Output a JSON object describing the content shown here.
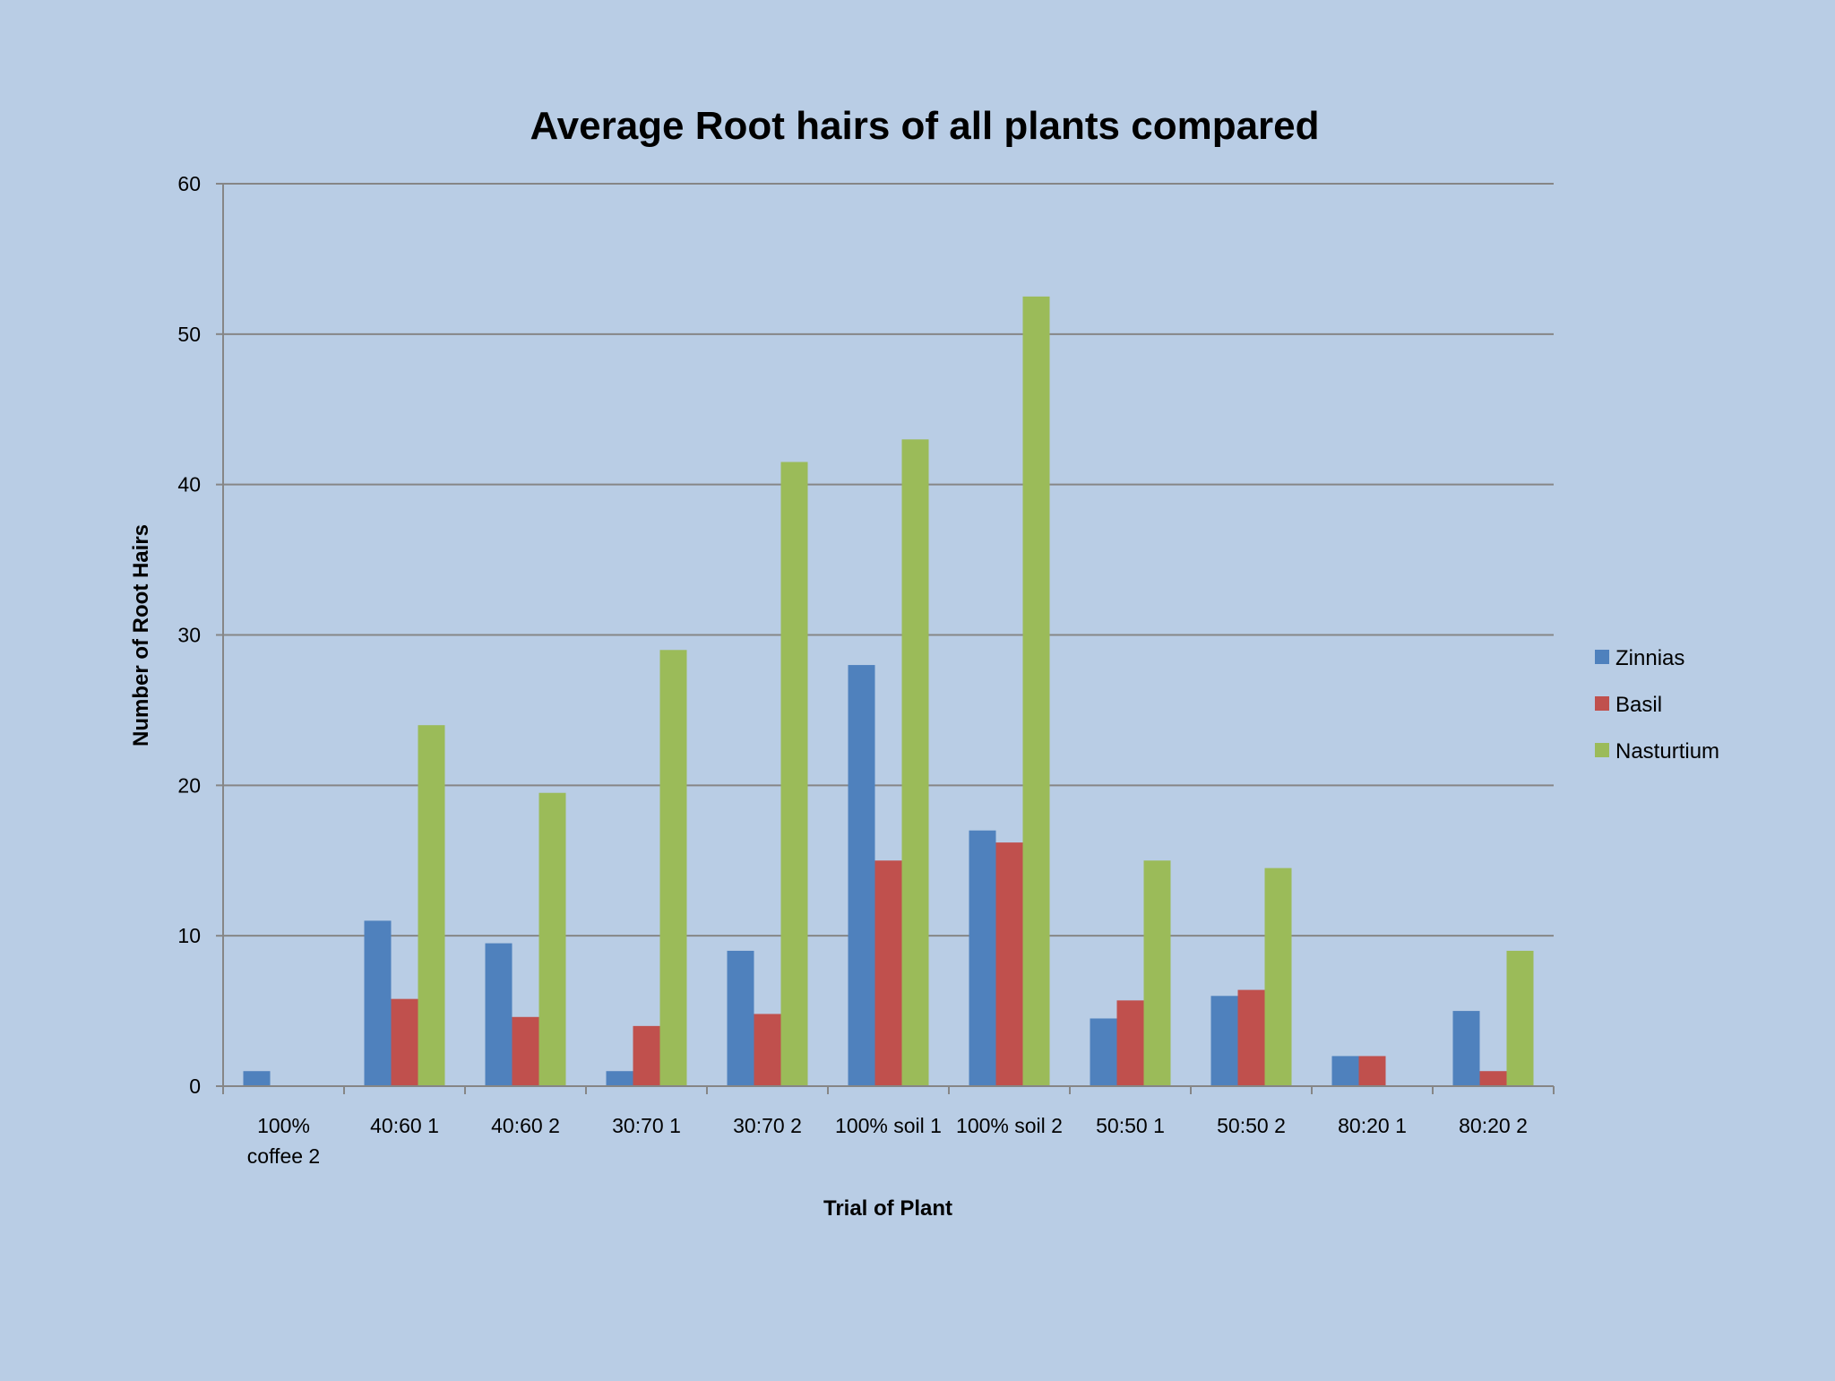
{
  "chart_data": {
    "type": "bar",
    "title": "Average Root hairs of all plants compared",
    "xlabel": "Trial of Plant",
    "ylabel": "Number of Root Hairs",
    "ylim": [
      0,
      60
    ],
    "yticks": [
      0,
      10,
      20,
      30,
      40,
      50,
      60
    ],
    "grid": true,
    "legend_position": "right",
    "categories": [
      "100% coffee 2",
      "40:60 1",
      "40:60 2",
      "30:70 1",
      "30:70 2",
      "100% soil 1",
      "100% soil 2",
      "50:50 1",
      "50:50 2",
      "80:20 1",
      "80:20 2"
    ],
    "category_lines": [
      [
        "100%",
        "coffee 2"
      ],
      [
        "40:60 1"
      ],
      [
        "40:60 2"
      ],
      [
        "30:70 1"
      ],
      [
        "30:70 2"
      ],
      [
        "100% soil 1"
      ],
      [
        "100% soil 2"
      ],
      [
        "50:50 1"
      ],
      [
        "50:50 2"
      ],
      [
        "80:20 1"
      ],
      [
        "80:20 2"
      ]
    ],
    "series": [
      {
        "name": "Zinnias",
        "color": "#4f81bd",
        "values": [
          1,
          11,
          9.5,
          1,
          9,
          28,
          17,
          4.5,
          6,
          2,
          5
        ]
      },
      {
        "name": "Basil",
        "color": "#c0504d",
        "values": [
          0,
          5.8,
          4.6,
          4,
          4.8,
          15,
          16.2,
          5.7,
          6.4,
          2,
          1
        ]
      },
      {
        "name": "Nasturtium",
        "color": "#9bbb59",
        "values": [
          0,
          24,
          19.5,
          29,
          41.5,
          43,
          52.5,
          15,
          14.5,
          0,
          9
        ]
      }
    ]
  }
}
